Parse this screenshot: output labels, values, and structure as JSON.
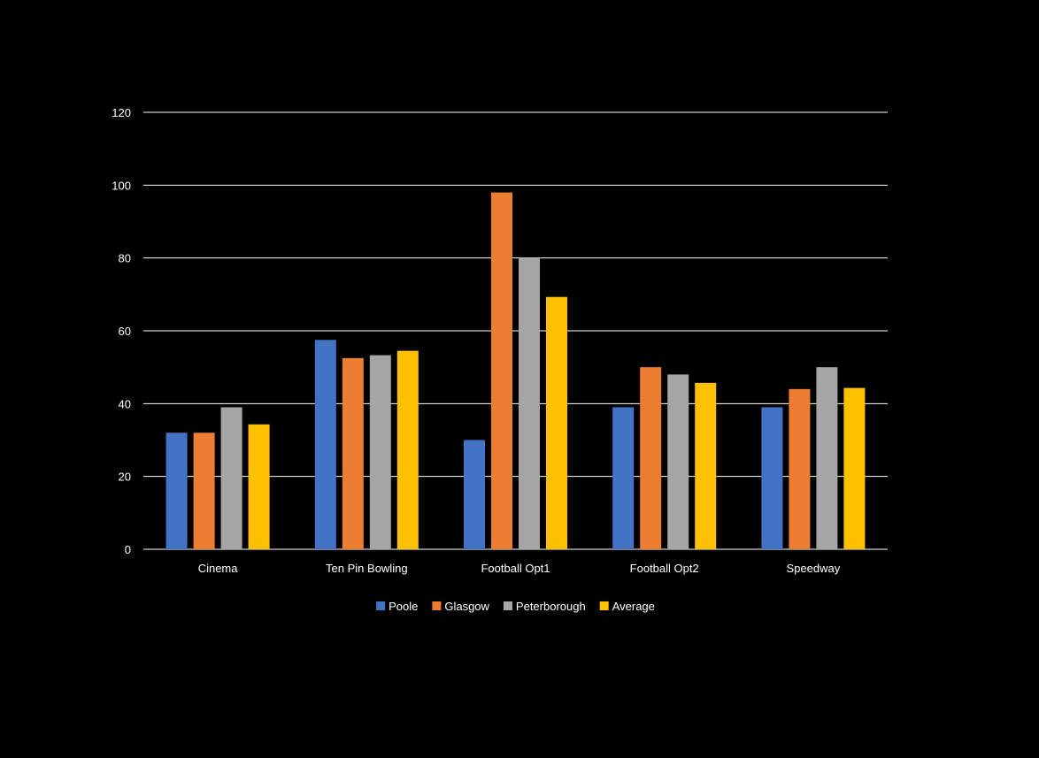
{
  "chart_data": {
    "type": "bar",
    "title": "",
    "xlabel": "",
    "ylabel": "",
    "ylim": [
      0,
      120
    ],
    "yticks": [
      0,
      20,
      40,
      60,
      80,
      100,
      120
    ],
    "grid": true,
    "legend_position": "bottom",
    "categories": [
      "Cinema",
      "Ten Pin Bowling",
      "Football Opt1",
      "Football Opt2",
      "Speedway"
    ],
    "series": [
      {
        "name": "Poole",
        "color": "#4472C4",
        "values": [
          32,
          57.5,
          30,
          39,
          39
        ]
      },
      {
        "name": "Glasgow",
        "color": "#ED7D31",
        "values": [
          32,
          52.5,
          98,
          50,
          44
        ]
      },
      {
        "name": "Peterborough",
        "color": "#A5A5A5",
        "values": [
          39,
          53.3,
          80,
          48,
          50
        ]
      },
      {
        "name": "Average",
        "color": "#FFC000",
        "values": [
          34.3,
          54.5,
          69.3,
          45.7,
          44.3
        ]
      }
    ]
  },
  "colors": {
    "background": "#000000",
    "text": "#ffffff",
    "gridline": "#ffffff"
  }
}
